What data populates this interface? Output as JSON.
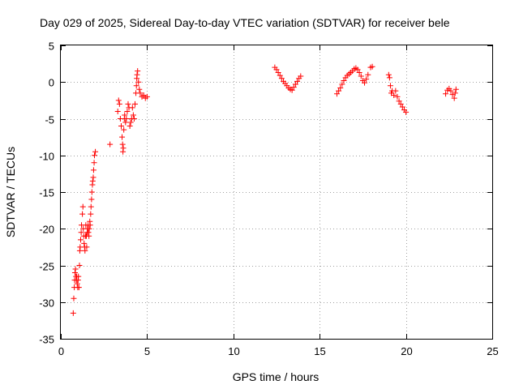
{
  "chart_data": {
    "type": "scatter",
    "title": "Day 029 of 2025, Sidereal Day-to-day VTEC variation (SDTVAR) for receiver bele",
    "xlabel": "GPS time / hours",
    "ylabel": "SDTVAR / TECUs",
    "xlim": [
      0,
      25
    ],
    "ylim": [
      -35,
      5
    ],
    "xticks": [
      0,
      5,
      10,
      15,
      20,
      25
    ],
    "yticks": [
      -35,
      -30,
      -25,
      -20,
      -15,
      -10,
      -5,
      0,
      5
    ],
    "grid": true,
    "marker": "+",
    "series": [
      {
        "name": "SDTVAR",
        "color": "#ff0000",
        "x": [
          0.72,
          0.75,
          0.78,
          0.8,
          0.82,
          0.85,
          0.88,
          0.9,
          0.92,
          0.95,
          0.98,
          1.0,
          1.02,
          1.05,
          1.08,
          1.1,
          1.12,
          1.15,
          1.18,
          1.2,
          1.25,
          1.28,
          1.3,
          1.33,
          1.35,
          1.38,
          1.4,
          1.43,
          1.45,
          1.48,
          1.5,
          1.53,
          1.55,
          1.58,
          1.6,
          1.63,
          1.65,
          1.68,
          1.7,
          1.73,
          1.75,
          1.78,
          1.8,
          1.83,
          1.85,
          1.88,
          1.9,
          1.93,
          1.95,
          2.0,
          2.85,
          3.3,
          3.35,
          3.4,
          3.45,
          3.5,
          3.55,
          3.58,
          3.6,
          3.62,
          3.65,
          3.68,
          3.7,
          3.75,
          3.8,
          3.85,
          3.9,
          3.95,
          4.0,
          4.05,
          4.1,
          4.15,
          4.2,
          4.25,
          4.3,
          4.35,
          4.38,
          4.4,
          4.42,
          4.45,
          4.5,
          4.55,
          4.6,
          4.7,
          4.8,
          4.9,
          5.0,
          12.4,
          12.5,
          12.6,
          12.7,
          12.8,
          12.9,
          13.0,
          13.1,
          13.2,
          13.3,
          13.4,
          13.5,
          13.6,
          13.7,
          13.8,
          13.9,
          16.0,
          16.1,
          16.2,
          16.3,
          16.4,
          16.5,
          16.6,
          16.7,
          16.8,
          16.9,
          17.0,
          17.1,
          17.2,
          17.3,
          17.4,
          17.5,
          17.6,
          17.7,
          17.8,
          17.95,
          18.05,
          19.0,
          19.05,
          19.1,
          19.15,
          19.2,
          19.3,
          19.4,
          19.5,
          19.6,
          19.7,
          19.8,
          19.9,
          20.0,
          22.3,
          22.4,
          22.5,
          22.6,
          22.7,
          22.8,
          22.85,
          22.9
        ],
        "y": [
          -31.5,
          -29.5,
          -28,
          -27,
          -26,
          -25.5,
          -26.5,
          -27,
          -26.5,
          -27.5,
          -28,
          -27,
          -26.5,
          -28,
          -25,
          -23,
          -22.5,
          -21.5,
          -20.5,
          -19.5,
          -18,
          -17,
          -20,
          -21,
          -22,
          -22.5,
          -23,
          -21,
          -19.5,
          -21,
          -22.5,
          -20.5,
          -20,
          -19.5,
          -20.5,
          -21,
          -20,
          -19,
          -19.5,
          -18,
          -17,
          -16,
          -15,
          -14,
          -13.5,
          -13,
          -12,
          -11,
          -10,
          -9.5,
          -8.5,
          -4,
          -2.5,
          -3,
          -5,
          -6,
          -7.5,
          -8.5,
          -9.5,
          -9,
          -6.5,
          -5,
          -4.5,
          -5.5,
          -5,
          -4,
          -3,
          -3.5,
          -6,
          -5.5,
          -5,
          -3.5,
          -4.5,
          -5,
          -3,
          -1.5,
          -0.5,
          0.5,
          1,
          1.5,
          0,
          -1,
          -1.5,
          -2,
          -1.8,
          -2.2,
          -2,
          2,
          1.7,
          1.3,
          0.9,
          0.5,
          0.1,
          -0.2,
          -0.5,
          -0.8,
          -1.0,
          -1.1,
          -0.7,
          -0.3,
          0.1,
          0.5,
          0.8,
          -1.6,
          -1.2,
          -0.8,
          -0.3,
          0.2,
          0.6,
          0.9,
          1.1,
          1.3,
          1.5,
          1.8,
          1.9,
          1.7,
          1.3,
          0.8,
          0.2,
          -0.1,
          0.4,
          1.0,
          2.0,
          2.1,
          1.0,
          0.6,
          -0.5,
          -1.5,
          -1.2,
          -1.8,
          -1.2,
          -2.0,
          -2.6,
          -3.0,
          -3.4,
          -3.8,
          -4.1,
          -1.6,
          -1.1,
          -0.9,
          -1.2,
          -1.7,
          -2.2,
          -1.5,
          -1.0
        ]
      }
    ]
  }
}
